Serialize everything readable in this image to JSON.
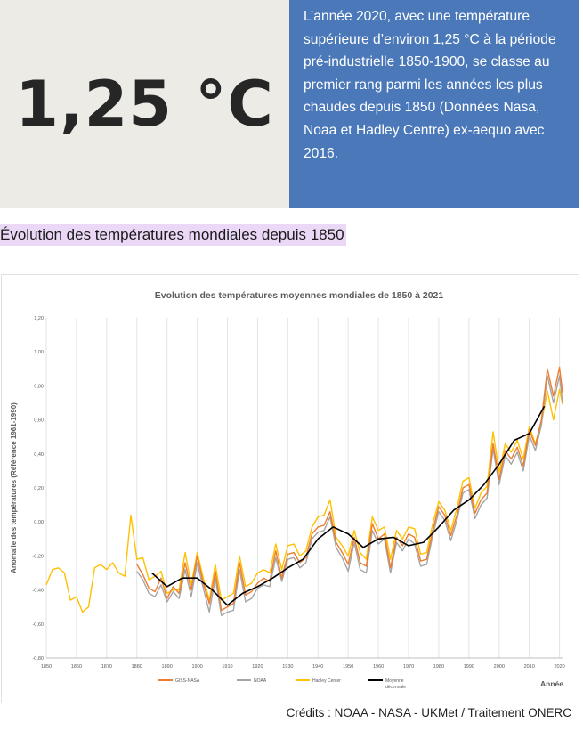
{
  "stat": {
    "value": "1,25 °C"
  },
  "info": {
    "lines": [
      "L’année 2020, avec une température",
      "supérieure d’environ 1,25 °C à la période",
      "pré-industrielle 1850-1900, se classe au",
      "premier rang parmi les années les plus",
      "chaudes depuis 1850 (Données Nasa,",
      "Noaa et Hadley Centre) ex-aequo avec",
      "2016."
    ]
  },
  "section": {
    "heading": "Évolution des températures mondiales depuis 1850"
  },
  "credits": "Crédits : NOAA - NASA - UKMet / Traitement ONERC",
  "colors": {
    "stat_bg": "#ecebe6",
    "info_bg": "#4a78b8",
    "heading_highlight": "#ead8f6",
    "giss": "#ed7d31",
    "noaa": "#a5a5a5",
    "hadley": "#ffc000",
    "mean": "#000000"
  },
  "chart_data": {
    "type": "line",
    "title": "Evolution des températures moyennes mondiales de 1850 à 2021",
    "xlabel": "Année",
    "ylabel": "Anomalie des températures (Référence 1961-1990)",
    "xlim": [
      1850,
      2021
    ],
    "ylim": [
      -0.8,
      1.2
    ],
    "x_ticks": [
      "1850",
      "1860",
      "1870",
      "1880",
      "1890",
      "1900",
      "1910",
      "1920",
      "1930",
      "1940",
      "1950",
      "1960",
      "1970",
      "1980",
      "1990",
      "2000",
      "2010",
      "2020"
    ],
    "y_ticks": [
      "-0,80",
      "-0,60",
      "-0,40",
      "-0,20",
      "0,00",
      "0,20",
      "0,40",
      "0,60",
      "0,80",
      "1,00",
      "1,20"
    ],
    "grid": "vertical",
    "legend_position": "bottom",
    "series": [
      {
        "name": "GISS-NASA",
        "color": "#ed7d31",
        "x": [
          1880,
          1882,
          1884,
          1886,
          1888,
          1890,
          1892,
          1894,
          1896,
          1898,
          1900,
          1902,
          1904,
          1906,
          1908,
          1910,
          1912,
          1914,
          1916,
          1918,
          1920,
          1922,
          1924,
          1926,
          1928,
          1930,
          1932,
          1934,
          1936,
          1938,
          1940,
          1942,
          1944,
          1946,
          1948,
          1950,
          1952,
          1954,
          1956,
          1958,
          1960,
          1962,
          1964,
          1966,
          1968,
          1970,
          1972,
          1974,
          1976,
          1978,
          1980,
          1982,
          1984,
          1986,
          1988,
          1990,
          1992,
          1994,
          1996,
          1998,
          2000,
          2002,
          2004,
          2006,
          2008,
          2010,
          2012,
          2014,
          2016,
          2018,
          2020,
          2021
        ],
        "y": [
          -0.25,
          -0.31,
          -0.39,
          -0.41,
          -0.33,
          -0.45,
          -0.38,
          -0.42,
          -0.24,
          -0.4,
          -0.2,
          -0.36,
          -0.48,
          -0.29,
          -0.52,
          -0.5,
          -0.48,
          -0.24,
          -0.43,
          -0.41,
          -0.36,
          -0.33,
          -0.35,
          -0.17,
          -0.33,
          -0.19,
          -0.18,
          -0.24,
          -0.21,
          -0.07,
          -0.03,
          -0.02,
          0.06,
          -0.12,
          -0.18,
          -0.25,
          -0.09,
          -0.24,
          -0.26,
          -0.01,
          -0.1,
          -0.07,
          -0.27,
          -0.09,
          -0.14,
          -0.07,
          -0.09,
          -0.23,
          -0.22,
          -0.05,
          0.09,
          0.04,
          -0.08,
          0.04,
          0.2,
          0.22,
          0.05,
          0.13,
          0.17,
          0.46,
          0.25,
          0.42,
          0.37,
          0.44,
          0.33,
          0.54,
          0.45,
          0.6,
          0.9,
          0.74,
          0.91,
          0.76
        ]
      },
      {
        "name": "NOAA",
        "color": "#a5a5a5",
        "x": [
          1880,
          1882,
          1884,
          1886,
          1888,
          1890,
          1892,
          1894,
          1896,
          1898,
          1900,
          1902,
          1904,
          1906,
          1908,
          1910,
          1912,
          1914,
          1916,
          1918,
          1920,
          1922,
          1924,
          1926,
          1928,
          1930,
          1932,
          1934,
          1936,
          1938,
          1940,
          1942,
          1944,
          1946,
          1948,
          1950,
          1952,
          1954,
          1956,
          1958,
          1960,
          1962,
          1964,
          1966,
          1968,
          1970,
          1972,
          1974,
          1976,
          1978,
          1980,
          1982,
          1984,
          1986,
          1988,
          1990,
          1992,
          1994,
          1996,
          1998,
          2000,
          2002,
          2004,
          2006,
          2008,
          2010,
          2012,
          2014,
          2016,
          2018,
          2020,
          2021
        ],
        "y": [
          -0.29,
          -0.34,
          -0.42,
          -0.44,
          -0.37,
          -0.47,
          -0.41,
          -0.45,
          -0.28,
          -0.44,
          -0.24,
          -0.39,
          -0.53,
          -0.33,
          -0.55,
          -0.53,
          -0.52,
          -0.28,
          -0.47,
          -0.45,
          -0.39,
          -0.37,
          -0.38,
          -0.21,
          -0.35,
          -0.22,
          -0.21,
          -0.27,
          -0.24,
          -0.1,
          -0.06,
          -0.05,
          0.03,
          -0.15,
          -0.21,
          -0.29,
          -0.12,
          -0.28,
          -0.3,
          -0.05,
          -0.13,
          -0.1,
          -0.3,
          -0.12,
          -0.17,
          -0.1,
          -0.13,
          -0.26,
          -0.25,
          -0.08,
          0.06,
          0.01,
          -0.11,
          0.01,
          0.17,
          0.19,
          0.02,
          0.1,
          0.14,
          0.43,
          0.22,
          0.39,
          0.34,
          0.41,
          0.3,
          0.51,
          0.42,
          0.57,
          0.86,
          0.7,
          0.86,
          0.7
        ]
      },
      {
        "name": "Hadley Center",
        "color": "#ffc000",
        "x": [
          1850,
          1852,
          1854,
          1856,
          1858,
          1860,
          1862,
          1864,
          1866,
          1868,
          1870,
          1872,
          1874,
          1876,
          1878,
          1880,
          1882,
          1884,
          1886,
          1888,
          1890,
          1892,
          1894,
          1896,
          1898,
          1900,
          1902,
          1904,
          1906,
          1908,
          1910,
          1912,
          1914,
          1916,
          1918,
          1920,
          1922,
          1924,
          1926,
          1928,
          1930,
          1932,
          1934,
          1936,
          1938,
          1940,
          1942,
          1944,
          1946,
          1948,
          1950,
          1952,
          1954,
          1956,
          1958,
          1960,
          1962,
          1964,
          1966,
          1968,
          1970,
          1972,
          1974,
          1976,
          1978,
          1980,
          1982,
          1984,
          1986,
          1988,
          1990,
          1992,
          1994,
          1996,
          1998,
          2000,
          2002,
          2004,
          2006,
          2008,
          2010,
          2012,
          2014,
          2016,
          2018,
          2020,
          2021
        ],
        "y": [
          -0.37,
          -0.28,
          -0.27,
          -0.3,
          -0.46,
          -0.44,
          -0.53,
          -0.5,
          -0.27,
          -0.25,
          -0.28,
          -0.24,
          -0.3,
          -0.32,
          0.04,
          -0.22,
          -0.21,
          -0.34,
          -0.32,
          -0.29,
          -0.42,
          -0.4,
          -0.4,
          -0.18,
          -0.37,
          -0.18,
          -0.33,
          -0.46,
          -0.25,
          -0.46,
          -0.44,
          -0.42,
          -0.2,
          -0.38,
          -0.36,
          -0.3,
          -0.28,
          -0.3,
          -0.13,
          -0.28,
          -0.14,
          -0.13,
          -0.2,
          -0.17,
          -0.03,
          0.03,
          0.04,
          0.13,
          -0.09,
          -0.14,
          -0.2,
          -0.05,
          -0.18,
          -0.22,
          0.03,
          -0.05,
          -0.03,
          -0.22,
          -0.05,
          -0.1,
          -0.03,
          -0.04,
          -0.19,
          -0.18,
          -0.01,
          0.12,
          0.07,
          -0.05,
          0.08,
          0.24,
          0.26,
          0.08,
          0.17,
          0.21,
          0.53,
          0.29,
          0.46,
          0.41,
          0.48,
          0.37,
          0.56,
          0.46,
          0.58,
          0.77,
          0.6,
          0.78,
          0.69
        ]
      },
      {
        "name": "Moyenne décennale",
        "color": "#000000",
        "x": [
          1885,
          1890,
          1895,
          1900,
          1905,
          1910,
          1915,
          1920,
          1925,
          1930,
          1935,
          1940,
          1945,
          1950,
          1955,
          1960,
          1965,
          1970,
          1975,
          1980,
          1985,
          1990,
          1995,
          2000,
          2005,
          2010,
          2015
        ],
        "y": [
          -0.3,
          -0.38,
          -0.33,
          -0.33,
          -0.4,
          -0.49,
          -0.42,
          -0.38,
          -0.33,
          -0.27,
          -0.22,
          -0.1,
          -0.03,
          -0.07,
          -0.15,
          -0.1,
          -0.09,
          -0.14,
          -0.12,
          -0.03,
          0.07,
          0.13,
          0.22,
          0.34,
          0.48,
          0.52,
          0.68
        ]
      }
    ]
  }
}
